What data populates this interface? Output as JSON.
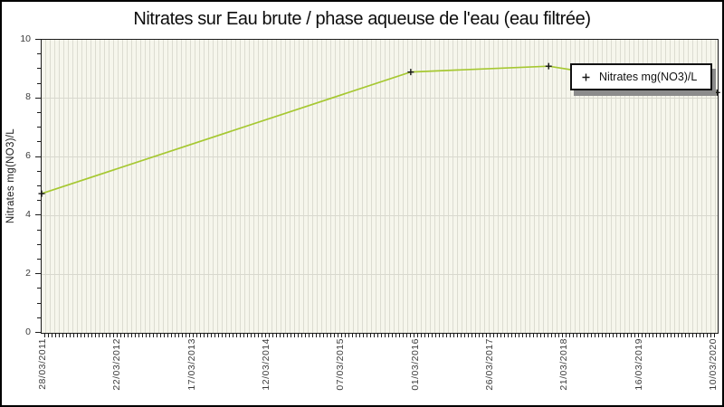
{
  "title": "Nitrates sur Eau brute / phase aqueuse de l'eau (eau filtrée)",
  "legend": {
    "label": "Nitrates mg(NO3)/L"
  },
  "y_axis": {
    "label": "Nitrates mg(NO3)/L",
    "min": 0,
    "max": 10,
    "major_ticks": [
      0,
      2,
      4,
      6,
      8,
      10
    ],
    "minor_step": 0.5
  },
  "x_axis": {
    "tick_labels": [
      "28/03/2011",
      "22/03/2012",
      "17/03/2013",
      "12/03/2014",
      "07/03/2015",
      "01/03/2016",
      "26/03/2017",
      "21/03/2018",
      "16/03/2019",
      "10/03/2020"
    ]
  },
  "colors": {
    "line": "#a6c832",
    "marker": "#161616",
    "plot_bg": "#f6f6ec",
    "stripe": "#dcdcd1",
    "gridline": "#d8d8ce",
    "axis": "#1c1c1c",
    "tick_text": "#3c3c3c",
    "legend_shadow": "#8c8c8c"
  },
  "chart_data": {
    "type": "line",
    "title": "Nitrates sur Eau brute / phase aqueuse de l'eau (eau filtrée)",
    "xlabel": "",
    "ylabel": "Nitrates mg(NO3)/L",
    "ylim": [
      0,
      10
    ],
    "y_major_ticks": [
      0,
      2,
      4,
      6,
      8,
      10
    ],
    "y_minor_step": 0.5,
    "x_tick_labels": [
      "28/03/2011",
      "22/03/2012",
      "17/03/2013",
      "12/03/2014",
      "07/03/2015",
      "01/03/2016",
      "26/03/2017",
      "21/03/2018",
      "16/03/2019",
      "10/03/2020"
    ],
    "legend_position": "top-right",
    "grid": "dense vertical stripes + horizontal gridlines at major y ticks",
    "series": [
      {
        "name": "Nitrates mg(NO3)/L",
        "color": "#a6c832",
        "marker": "plus",
        "points": [
          {
            "x_frac": 0.0,
            "x_label_est": "28/03/2011",
            "value": 4.75
          },
          {
            "x_frac": 0.546,
            "x_label_est": "~02/2016",
            "value": 8.9
          },
          {
            "x_frac": 0.75,
            "x_label_est": "~01/2018",
            "value": 9.1
          },
          {
            "x_frac": 0.999,
            "x_label_est": "10/03/2020",
            "value": 8.2
          }
        ]
      }
    ]
  }
}
